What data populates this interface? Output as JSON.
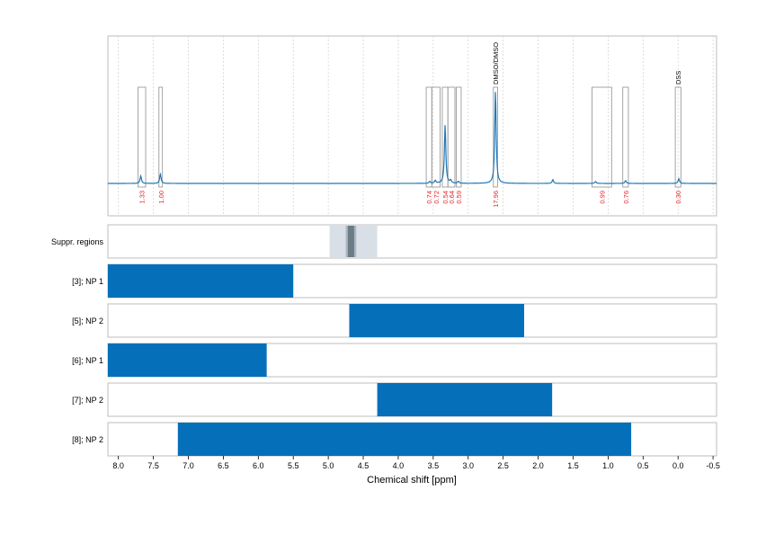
{
  "chart_data": {
    "type": "line",
    "xlabel": "Chemical shift [ppm]",
    "xlim": [
      8.15,
      -0.55
    ],
    "x_reversed": true,
    "xticks": [
      8.0,
      7.5,
      7.0,
      6.5,
      6.0,
      5.5,
      5.0,
      4.5,
      4.0,
      3.5,
      3.0,
      2.5,
      2.0,
      1.5,
      1.0,
      0.5,
      0.0,
      -0.5
    ],
    "xtick_labels": [
      "8.0",
      "7.5",
      "7.0",
      "6.5",
      "6.0",
      "5.5",
      "5.0",
      "4.5",
      "4.0",
      "3.5",
      "3.0",
      "2.5",
      "2.0",
      "1.5",
      "1.0",
      "0.5",
      "0.0",
      "-0.5"
    ],
    "grid": true,
    "spectrum": {
      "color": "#1f77b4",
      "peaks": [
        {
          "ppm": 7.68,
          "height": 0.08
        },
        {
          "ppm": 7.4,
          "height": 0.1
        },
        {
          "ppm": 3.55,
          "height": 0.02
        },
        {
          "ppm": 3.47,
          "height": 0.03
        },
        {
          "ppm": 3.33,
          "height": 0.62
        },
        {
          "ppm": 3.25,
          "height": 0.03
        },
        {
          "ppm": 3.14,
          "height": 0.02
        },
        {
          "ppm": 2.61,
          "height": 0.98
        },
        {
          "ppm": 1.79,
          "height": 0.04
        },
        {
          "ppm": 1.18,
          "height": 0.02
        },
        {
          "ppm": 0.75,
          "height": 0.03
        },
        {
          "ppm": -0.01,
          "height": 0.05
        }
      ]
    },
    "integration_regions": [
      {
        "from": 7.72,
        "to": 7.61,
        "label": "1.33"
      },
      {
        "from": 7.42,
        "to": 7.37,
        "label": "1.00"
      },
      {
        "from": 3.6,
        "to": 3.52,
        "label": "0.74"
      },
      {
        "from": 3.52,
        "to": 3.4,
        "label": "0.72"
      },
      {
        "from": 3.37,
        "to": 3.29,
        "label": "0.54"
      },
      {
        "from": 3.29,
        "to": 3.19,
        "label": "0.64"
      },
      {
        "from": 3.17,
        "to": 3.1,
        "label": "0.59"
      },
      {
        "from": 2.64,
        "to": 2.58,
        "label": "17.96",
        "name": "DMSO/DMSO"
      },
      {
        "from": 1.23,
        "to": 0.95,
        "label": "0.99"
      },
      {
        "from": 0.79,
        "to": 0.71,
        "label": "0.76"
      },
      {
        "from": 0.04,
        "to": -0.04,
        "label": "0.30",
        "name": "DSS"
      }
    ],
    "suppression_regions": [
      {
        "label": "Suppr. regions",
        "from": 4.98,
        "to": 4.3,
        "core_from": 4.75,
        "core_to": 4.6
      }
    ],
    "ranges": [
      {
        "label": "[3]; NP 1",
        "from": 8.15,
        "to": 5.5
      },
      {
        "label": "[5]; NP 2",
        "from": 4.7,
        "to": 2.2
      },
      {
        "label": "[6]; NP 1",
        "from": 8.15,
        "to": 5.88
      },
      {
        "label": "[7]; NP 2",
        "from": 4.3,
        "to": 1.8
      },
      {
        "label": "[8]; NP 2",
        "from": 7.15,
        "to": 0.67
      }
    ],
    "colors": {
      "bar": "#0570b9",
      "spectrum": "#1f77b4",
      "integral_label": "#e8242b",
      "suppression_outer": "#d8dfe6",
      "suppression_mid": "#a9b6c1",
      "suppression_core": "#6b7c87"
    }
  }
}
